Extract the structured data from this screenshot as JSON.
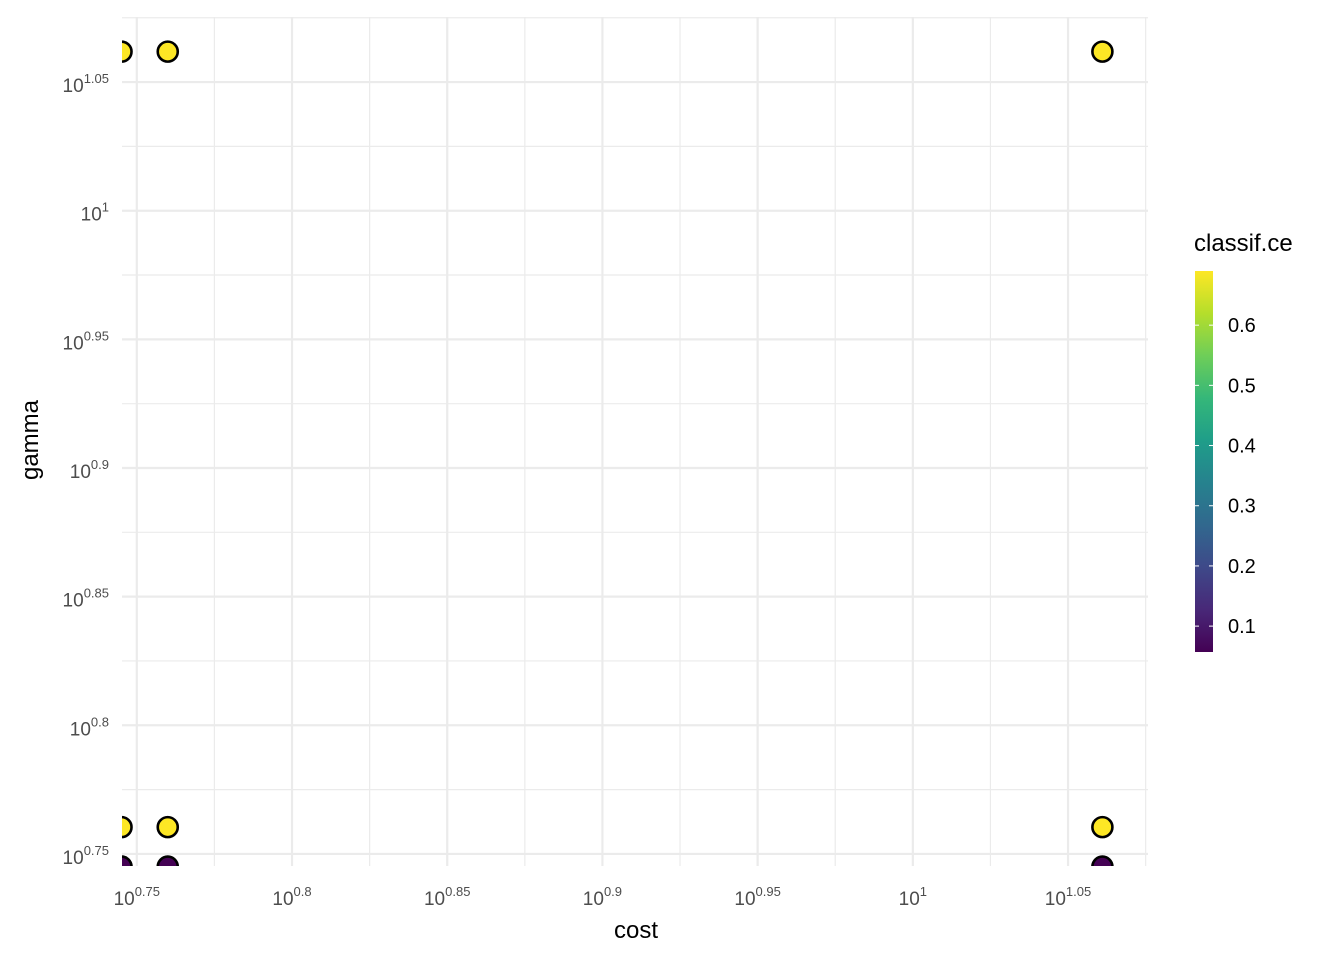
{
  "chart_data": {
    "type": "scatter",
    "x_label": "cost",
    "y_label": "gamma",
    "log_x": true,
    "log_y": true,
    "grid": true,
    "x": [
      5.56,
      5.754,
      11.51,
      5.56,
      5.754,
      11.51,
      5.56,
      5.754,
      11.51
    ],
    "y": [
      11.53,
      11.53,
      11.53,
      5.76,
      5.76,
      5.76,
      5.56,
      5.56,
      5.56
    ],
    "values": [
      0.69,
      0.69,
      0.69,
      0.69,
      0.69,
      0.69,
      0.057,
      0.057,
      0.057
    ],
    "xlim": [
      5.562,
      11.906
    ],
    "ylim": [
      5.563,
      11.893
    ],
    "xticks": [
      {
        "value": 5.6234,
        "label": {
          "base": "10",
          "exponent": "0.75"
        }
      },
      {
        "value": 6.3096,
        "label": {
          "base": "10",
          "exponent": "0.8"
        }
      },
      {
        "value": 7.0795,
        "label": {
          "base": "10",
          "exponent": "0.85"
        }
      },
      {
        "value": 7.9433,
        "label": {
          "base": "10",
          "exponent": "0.9"
        }
      },
      {
        "value": 8.9125,
        "label": {
          "base": "10",
          "exponent": "0.95"
        }
      },
      {
        "value": 10,
        "label": {
          "base": "10",
          "exponent": "1"
        }
      },
      {
        "value": 11.2202,
        "label": {
          "base": "10",
          "exponent": "1.05"
        }
      }
    ],
    "yticks": [
      {
        "value": 5.6234,
        "label": {
          "base": "10",
          "exponent": "0.75"
        }
      },
      {
        "value": 6.3096,
        "label": {
          "base": "10",
          "exponent": "0.8"
        }
      },
      {
        "value": 7.0795,
        "label": {
          "base": "10",
          "exponent": "0.85"
        }
      },
      {
        "value": 7.9433,
        "label": {
          "base": "10",
          "exponent": "0.9"
        }
      },
      {
        "value": 8.9125,
        "label": {
          "base": "10",
          "exponent": "0.95"
        }
      },
      {
        "value": 10,
        "label": {
          "base": "10",
          "exponent": "1"
        }
      },
      {
        "value": 11.2202,
        "label": {
          "base": "10",
          "exponent": "1.05"
        }
      }
    ],
    "colorbar": {
      "title": "classif.ce",
      "clim": [
        0.057,
        0.69
      ],
      "ticks": [
        0.1,
        0.2,
        0.3,
        0.4,
        0.5,
        0.6
      ],
      "colormap": [
        "#440154",
        "#482878",
        "#3e4989",
        "#31688e",
        "#26828e",
        "#1f9e89",
        "#35b779",
        "#6ece58",
        "#b5de2b",
        "#fde725"
      ]
    }
  }
}
